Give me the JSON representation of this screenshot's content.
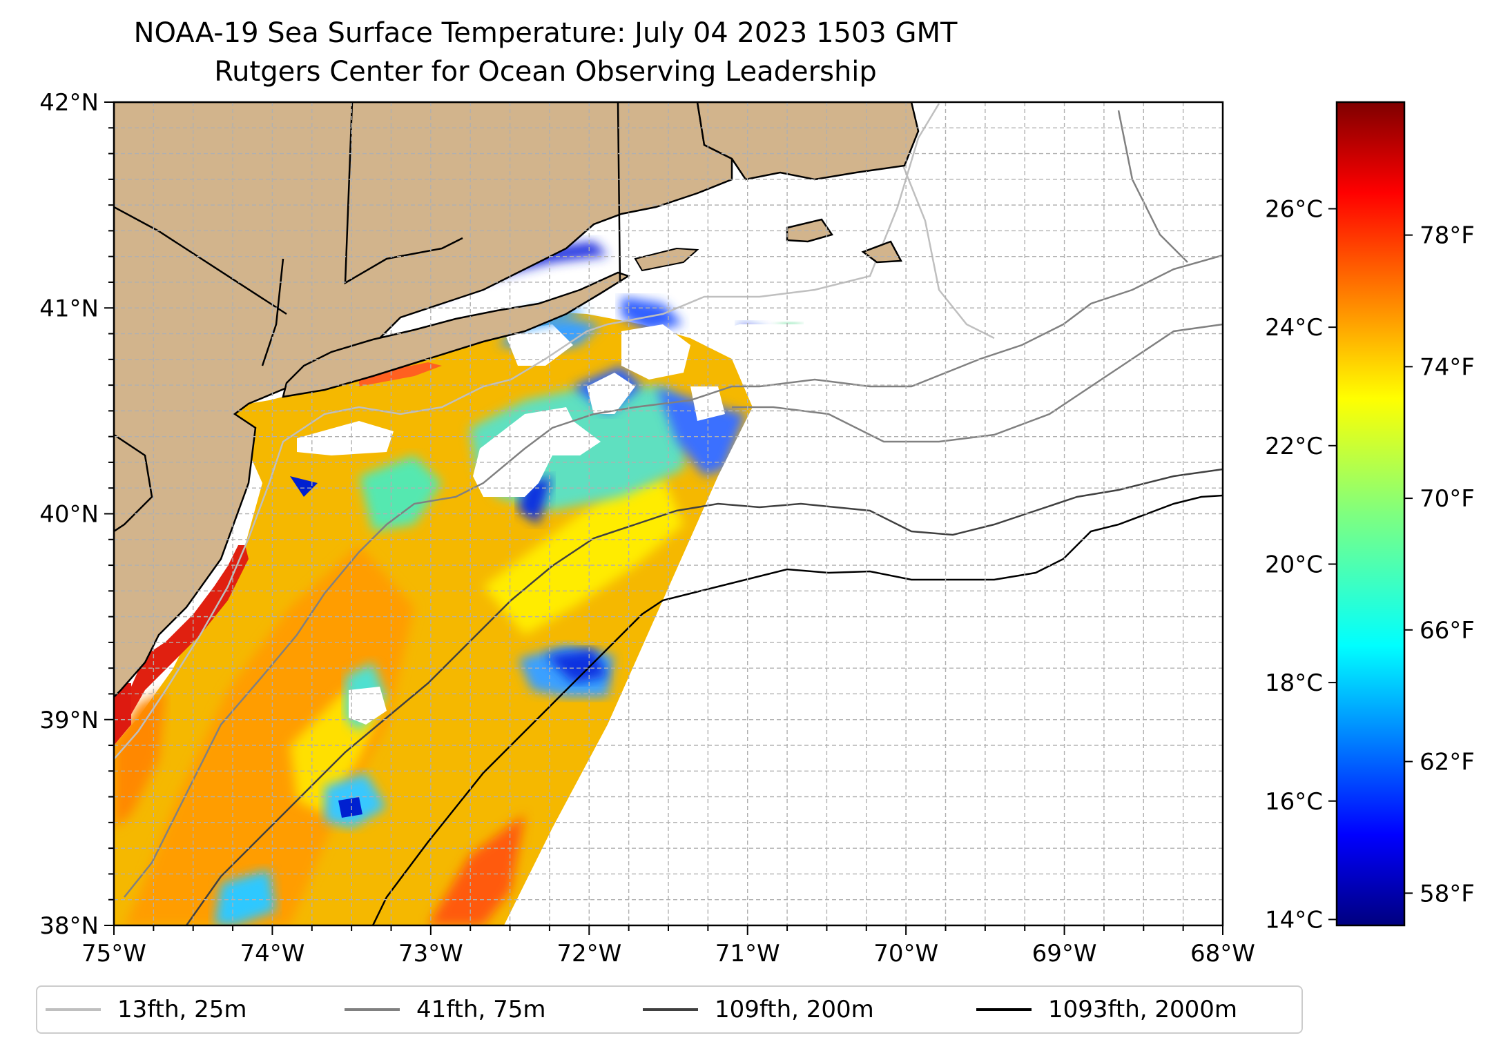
{
  "title": {
    "line1": "NOAA-19 Sea Surface Temperature: July 04 2023 1503 GMT",
    "line2": "Rutgers Center for Ocean Observing Leadership"
  },
  "map": {
    "lon_range": [
      -75,
      -68
    ],
    "lat_range": [
      38,
      42
    ],
    "lon_ticks": [
      "75°W",
      "74°W",
      "73°W",
      "72°W",
      "71°W",
      "70°W",
      "69°W",
      "68°W"
    ],
    "lat_ticks": [
      "38°N",
      "39°N",
      "40°N",
      "41°N",
      "42°N"
    ],
    "gridlines": true,
    "land_color": "#d2b48c",
    "no_data_color": "#ffffff",
    "colormap": "jet"
  },
  "colorbar": {
    "celsius_ticks": [
      "14°C",
      "16°C",
      "18°C",
      "20°C",
      "22°C",
      "24°C",
      "26°C"
    ],
    "fahrenheit_ticks": [
      "58°F",
      "62°F",
      "66°F",
      "70°F",
      "74°F",
      "78°F"
    ],
    "range_c": [
      13.9,
      27.8
    ],
    "colors": [
      "#00007f",
      "#0000ff",
      "#007fff",
      "#00ffff",
      "#7fff7f",
      "#ffff00",
      "#ff7f00",
      "#ff0000",
      "#7f0000"
    ]
  },
  "legend": {
    "items": [
      {
        "label": "13fth, 25m",
        "color": "#bfbfbf"
      },
      {
        "label": "41fth, 75m",
        "color": "#808080"
      },
      {
        "label": "109fth, 200m",
        "color": "#404040"
      },
      {
        "label": "1093fth, 2000m",
        "color": "#000000"
      }
    ]
  }
}
